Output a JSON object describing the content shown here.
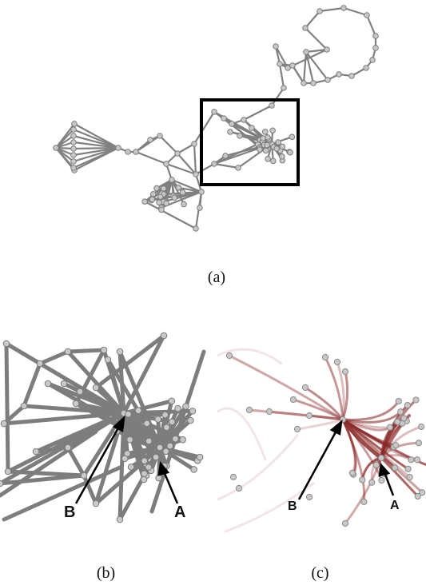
{
  "panels": {
    "a": {
      "caption": "(a)"
    },
    "b": {
      "caption": "(b)",
      "label_b": "B",
      "label_a": "A"
    },
    "c": {
      "caption": "(c)",
      "label_b": "B",
      "label_a": "A"
    }
  },
  "colors": {
    "node_fill": "#c8c8c8",
    "node_stroke": "#7a7a7a",
    "edge_gray": "#808080",
    "edge_dark": "#6e6e6e",
    "edge_red": "#8b2a2a",
    "frame": "#000000",
    "arrow": "#000000"
  }
}
